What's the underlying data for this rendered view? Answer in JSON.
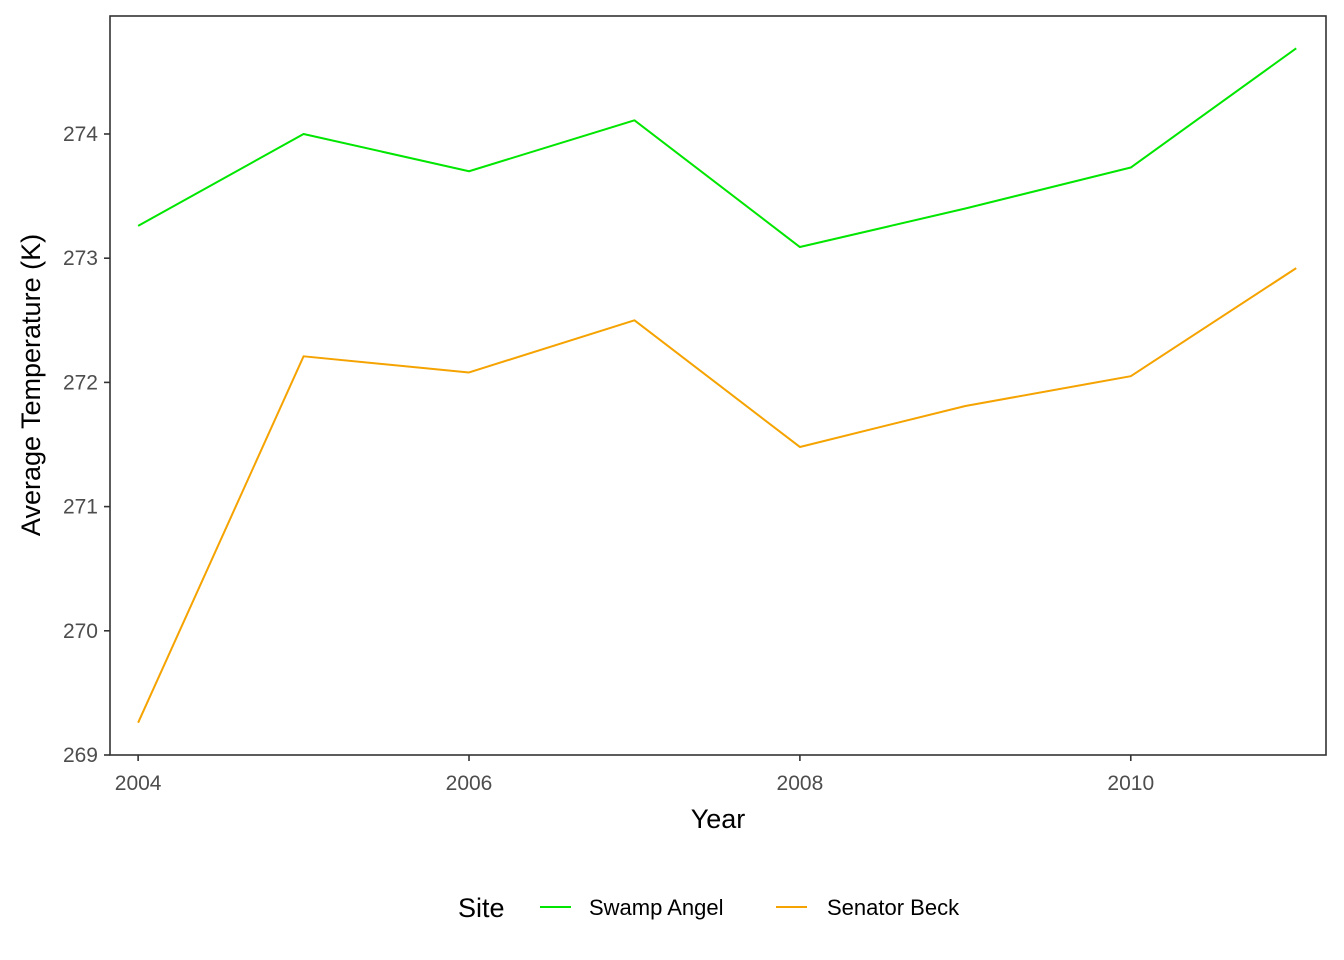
{
  "chart_data": {
    "type": "line",
    "xlabel": "Year",
    "ylabel": "Average Temperature (K)",
    "x": [
      2004,
      2005,
      2006,
      2007,
      2008,
      2009,
      2010,
      2011
    ],
    "xlim": [
      2003.83,
      2011.18
    ],
    "ylim": [
      269.0,
      274.95
    ],
    "x_ticks": [
      2004,
      2006,
      2008,
      2010
    ],
    "y_ticks": [
      269,
      270,
      271,
      272,
      273,
      274
    ],
    "grid": false,
    "legend": {
      "title": "Site",
      "position": "bottom"
    },
    "series": [
      {
        "name": "Swamp Angel",
        "color": "#00e600",
        "values": [
          273.26,
          274.0,
          273.7,
          274.11,
          273.09,
          273.4,
          273.73,
          274.69
        ]
      },
      {
        "name": "Senator Beck",
        "color": "#f5a300",
        "values": [
          269.26,
          272.21,
          272.08,
          272.5,
          271.48,
          271.81,
          272.05,
          272.92
        ]
      }
    ]
  }
}
